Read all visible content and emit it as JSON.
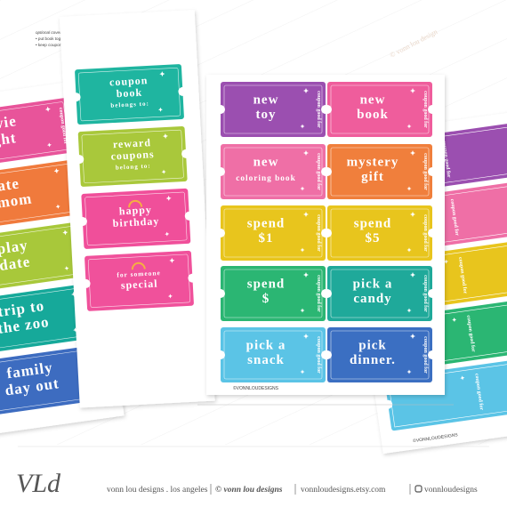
{
  "instructions": {
    "heading": "optional covers to choose from!",
    "items": [
      "• put book together with yarn, string, staples, hole punch ring",
      "• keep coupons loose in an envelope"
    ]
  },
  "watermark": "© vonn lou design",
  "left_sheet": {
    "side_label": "coupon good for",
    "coupons": [
      {
        "lines": [
          "movie",
          "night"
        ],
        "color": "#e8549a"
      },
      {
        "lines": [
          "date",
          "w/mom"
        ],
        "color": "#f07a3c"
      },
      {
        "lines": [
          "play",
          "date"
        ],
        "color": "#a8c83a"
      },
      {
        "lines": [
          "trip to",
          "the zoo"
        ],
        "color": "#16a99a"
      },
      {
        "lines": [
          "family",
          "day out"
        ],
        "color": "#3d6cc0"
      }
    ]
  },
  "covers_sheet": {
    "coupons": [
      {
        "lines": [
          "coupon",
          "book"
        ],
        "sub": "belongs to:",
        "color": "#1fb5a0"
      },
      {
        "lines": [
          "reward",
          "coupons"
        ],
        "sub": "belong to:",
        "color": "#a9c83b"
      },
      {
        "lines": [
          "happy",
          "birthday"
        ],
        "color": "#f04f9a"
      },
      {
        "lines": [
          "for someone",
          "special"
        ],
        "color": "#f0519b"
      }
    ]
  },
  "center_sheet": {
    "side_label": "coupon good for",
    "credit": "©VONNLOUDESIGNS",
    "coupons": [
      {
        "lines": [
          "new",
          "toy"
        ],
        "color": "#9b4fb0"
      },
      {
        "lines": [
          "new",
          "book"
        ],
        "color": "#ef5d9c"
      },
      {
        "lines": [
          "new",
          "coloring book"
        ],
        "color": "#ef6fa6"
      },
      {
        "lines": [
          "mystery",
          "gift"
        ],
        "color": "#f07f3c"
      },
      {
        "lines": [
          "spend",
          "$1"
        ],
        "color": "#e8c51d"
      },
      {
        "lines": [
          "spend",
          "$5"
        ],
        "color": "#e8c51d"
      },
      {
        "lines": [
          "spend",
          "$"
        ],
        "color": "#2bb673"
      },
      {
        "lines": [
          "pick a",
          "candy"
        ],
        "color": "#1fa99a"
      },
      {
        "lines": [
          "pick a",
          "snack"
        ],
        "color": "#5bc4e6"
      },
      {
        "lines": [
          "pick",
          "dinner."
        ],
        "color": "#3b6fc2"
      }
    ]
  },
  "right_sheet": {
    "side_label": "coupon good for",
    "credit": "©VONNLOUDESIGNS",
    "colors": [
      "#9b4fb0",
      "#ef6fa6",
      "#e8c51d",
      "#2bb673",
      "#5bc4e6"
    ]
  },
  "footer": {
    "logo": "VLd",
    "location": "vonn lou designs . los angeles",
    "copyright": "© vonn lou designs",
    "shop": "vonnloudesigns.etsy.com",
    "instagram": "vonnloudesigns"
  }
}
